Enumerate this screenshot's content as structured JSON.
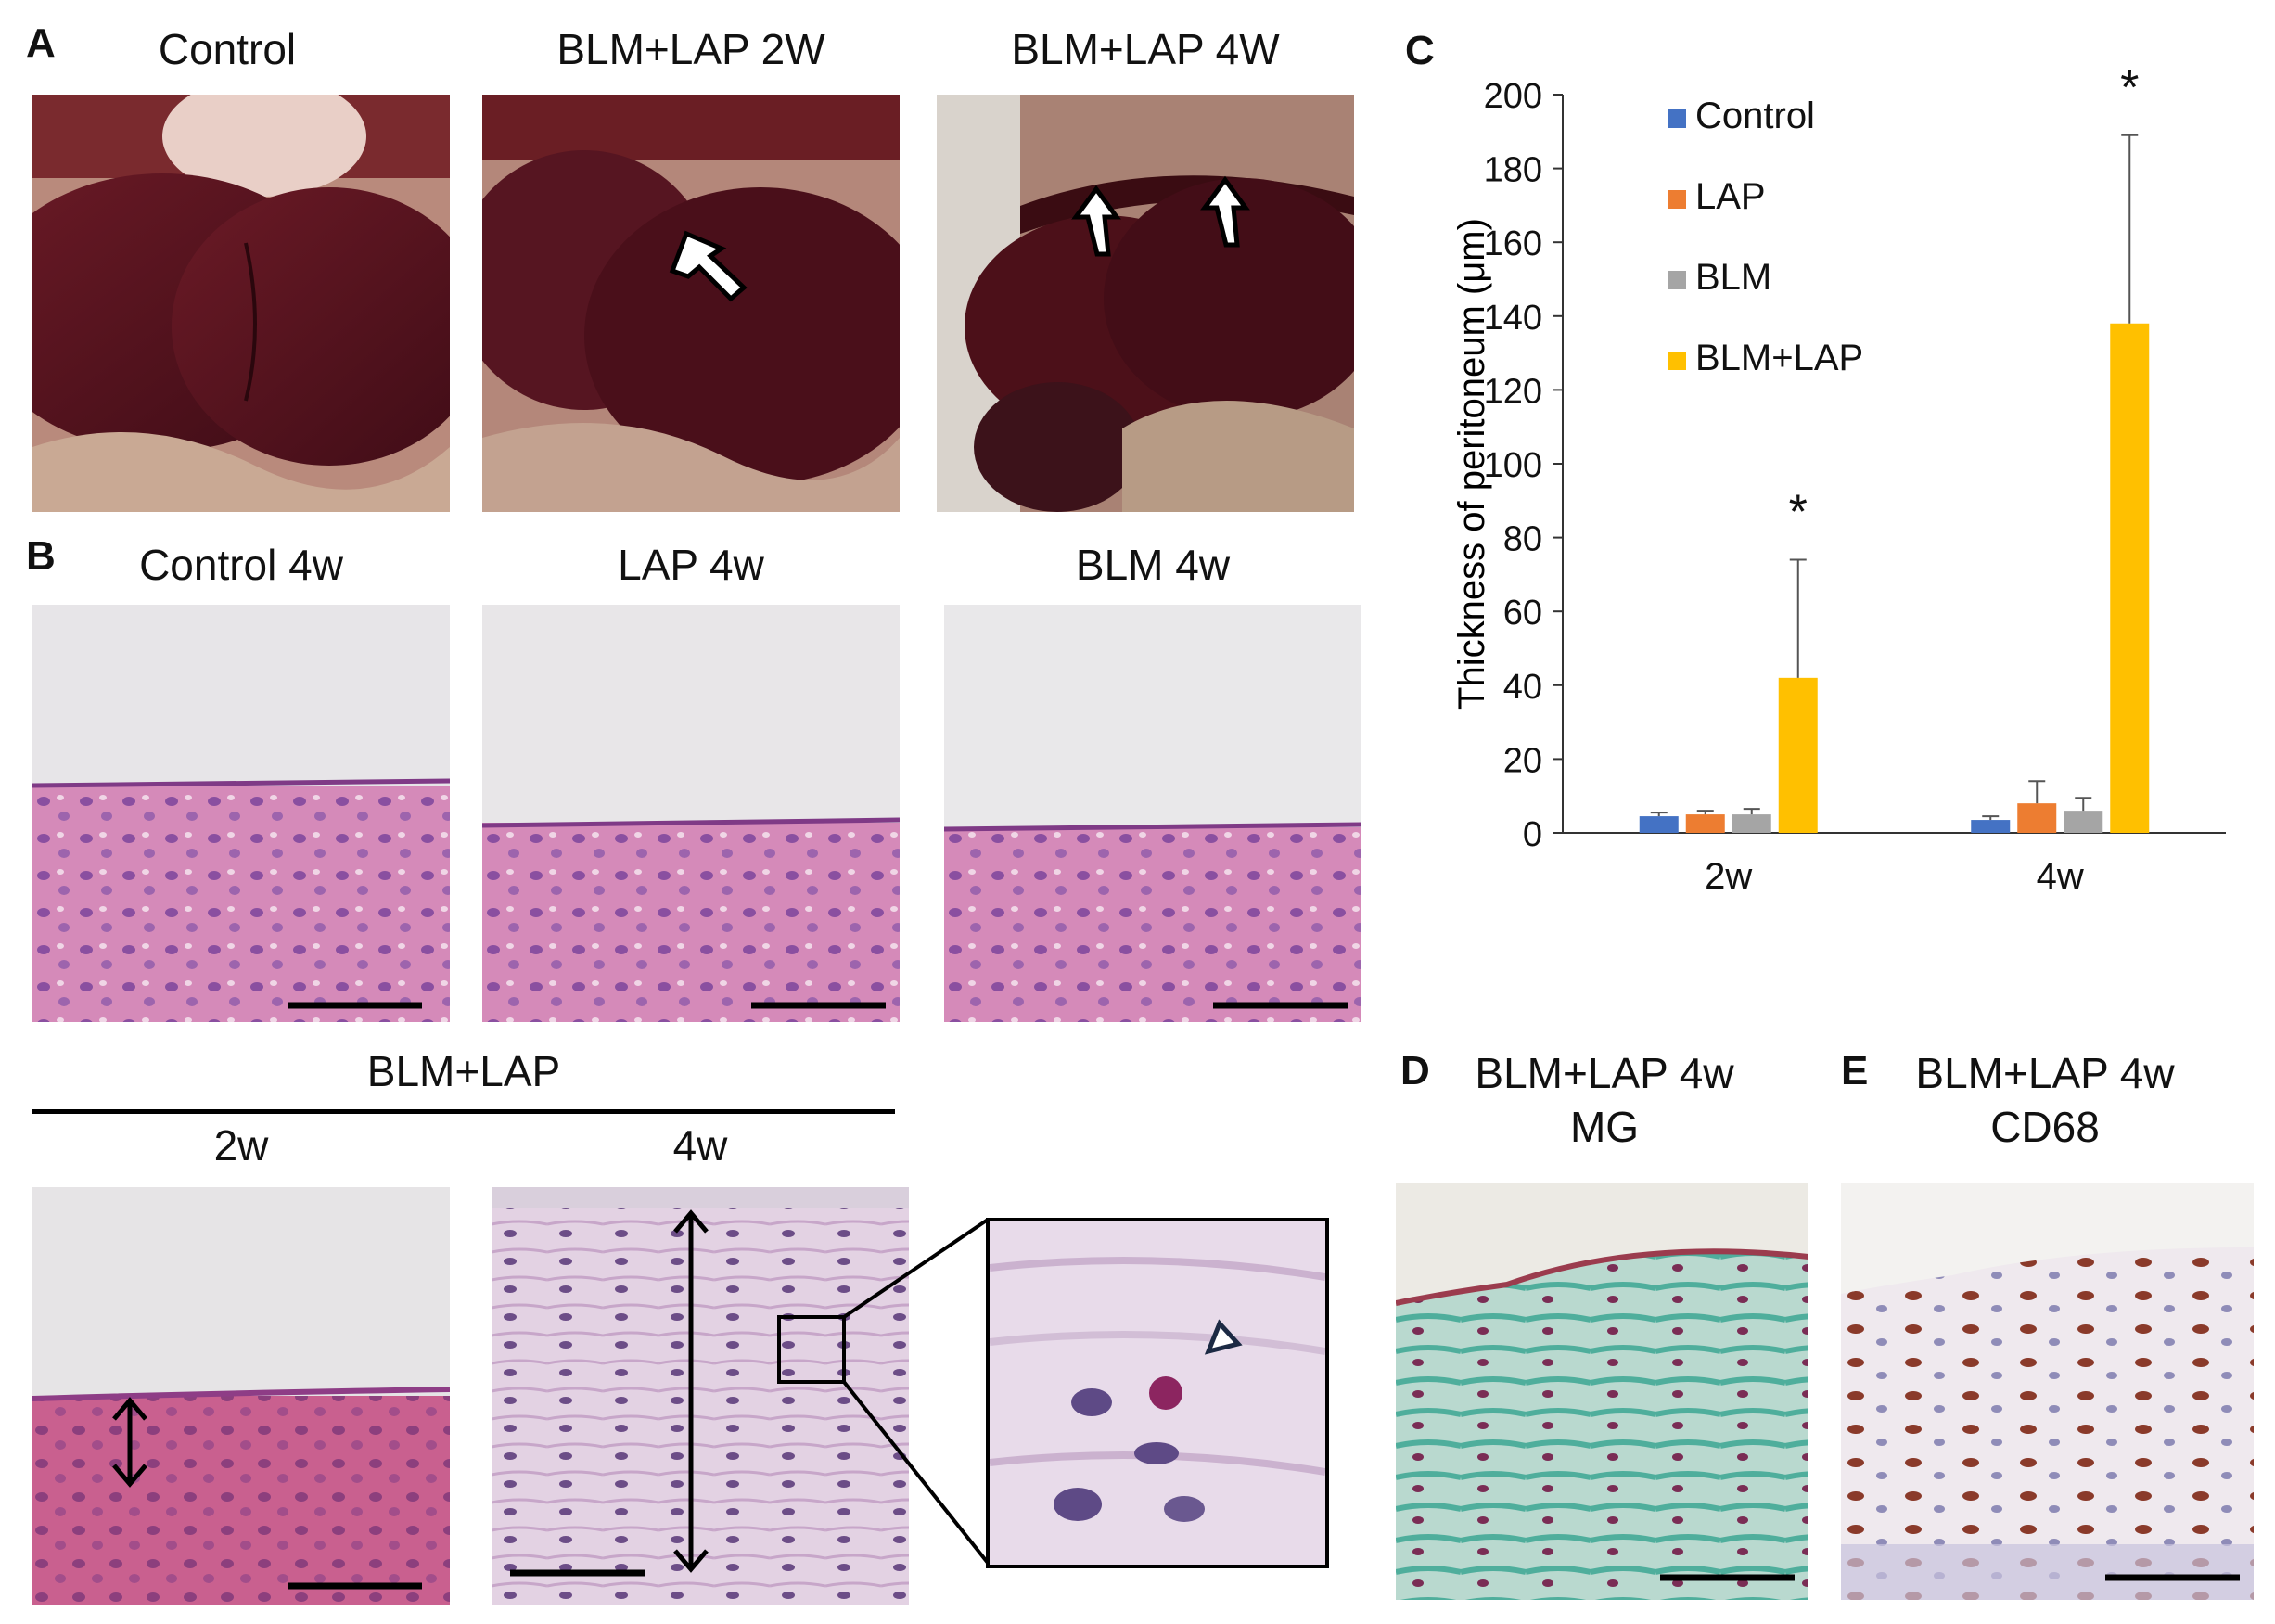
{
  "figure": {
    "panels": {
      "A": {
        "label": "A",
        "titles": [
          "Control",
          "BLM+LAP 2W",
          "BLM+LAP 4W"
        ]
      },
      "B": {
        "label": "B",
        "titles": [
          "Control 4w",
          "LAP 4w",
          "BLM 4w"
        ],
        "group_title": "BLM+LAP",
        "sub_titles": [
          "2w",
          "4w"
        ]
      },
      "C": {
        "label": "C"
      },
      "D": {
        "label": "D",
        "title_line1": "BLM+LAP 4w",
        "title_line2": "MG"
      },
      "E": {
        "label": "E",
        "title_line1": "BLM+LAP 4w",
        "title_line2": "CD68"
      }
    },
    "colors": {
      "liver": "#5a1420",
      "he_stain": "#cf7fb6",
      "mg_stain": "#6fb7a7",
      "cd68_stain": "#e8e2e6"
    }
  },
  "chart_data": {
    "type": "bar",
    "categories": [
      "2w",
      "4w"
    ],
    "series": [
      {
        "name": "Control",
        "color": "#4472c4",
        "values": [
          4.5,
          3.5
        ],
        "errors": [
          1.0,
          1.0
        ]
      },
      {
        "name": "LAP",
        "color": "#ed7d31",
        "values": [
          5.0,
          8.0
        ],
        "errors": [
          1.0,
          6.0
        ]
      },
      {
        "name": "BLM",
        "color": "#a5a5a5",
        "values": [
          5.0,
          6.0
        ],
        "errors": [
          1.5,
          3.5
        ]
      },
      {
        "name": "BLM+LAP",
        "color": "#ffc000",
        "values": [
          42,
          138
        ],
        "errors": [
          32,
          51
        ]
      }
    ],
    "ylabel": "Thickness of peritoneum (μm)",
    "ylim": [
      0,
      200
    ],
    "yticks": [
      "0",
      "20",
      "40",
      "60",
      "80",
      "100",
      "120",
      "140",
      "160",
      "180",
      "200"
    ],
    "annotations": [
      "*",
      "*"
    ],
    "legend_position": "top-left",
    "grid": false
  }
}
